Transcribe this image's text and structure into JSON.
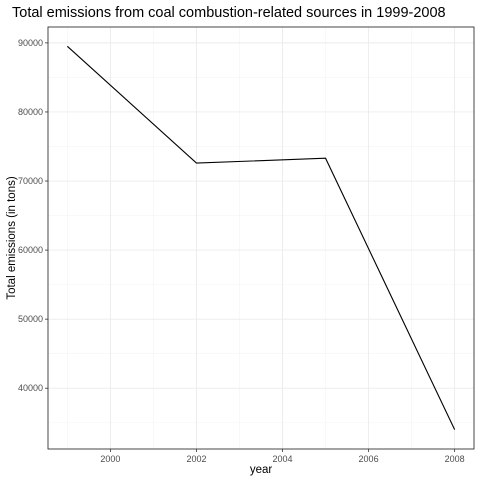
{
  "chart_data": {
    "type": "line",
    "title": "Total emissions from coal combustion-related sources in 1999-2008",
    "xlabel": "year",
    "ylabel": "Total emissions (in tons)",
    "x": [
      1999,
      2002,
      2005,
      2008
    ],
    "series": [
      {
        "values": [
          89500,
          72600,
          73300,
          34000
        ],
        "color": "#000000"
      }
    ],
    "xlim": [
      1998.55,
      2008.45
    ],
    "ylim": [
      31200,
      92300
    ],
    "xticks": [
      2000,
      2002,
      2004,
      2006,
      2008
    ],
    "xtick_labels": [
      "2000",
      "2002",
      "2004",
      "2006",
      "2008"
    ],
    "yticks": [
      40000,
      50000,
      60000,
      70000,
      80000,
      90000
    ],
    "ytick_labels": [
      "40000",
      "50000",
      "60000",
      "70000",
      "80000",
      "90000"
    ],
    "grid": true,
    "legend": "none",
    "theme": "bw"
  }
}
